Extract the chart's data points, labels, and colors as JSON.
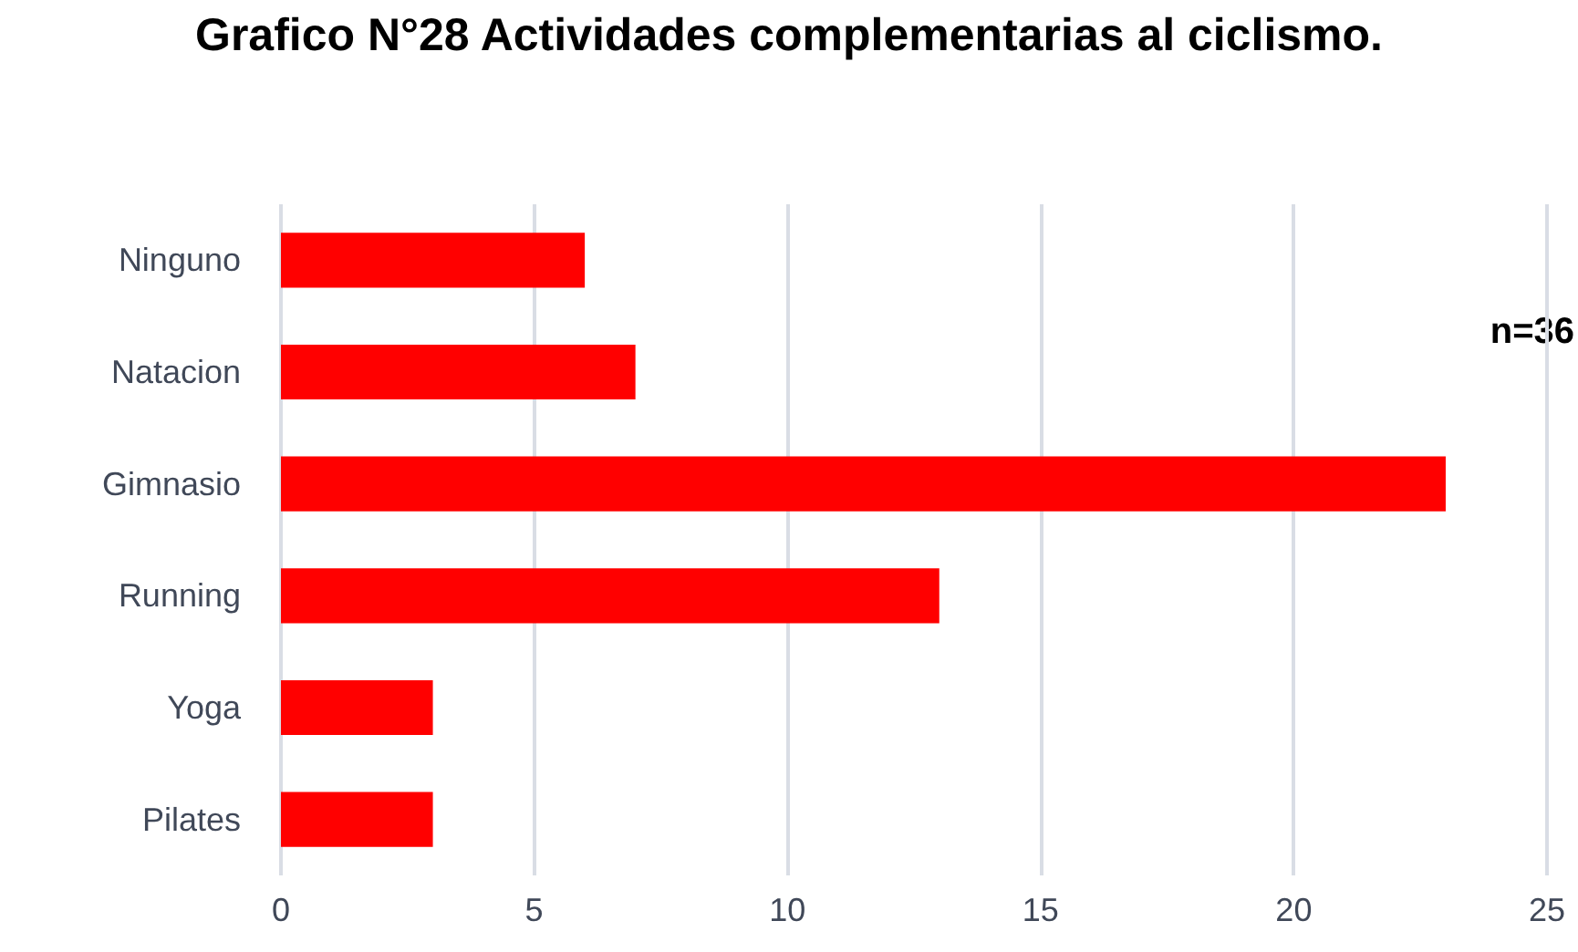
{
  "chart_data": {
    "type": "bar",
    "orientation": "horizontal",
    "title": "Grafico N°28 Actividades complementarias al ciclismo.",
    "categories": [
      "Ninguno",
      "Natacion",
      "Gimnasio",
      "Running",
      "Yoga",
      "Pilates"
    ],
    "values": [
      6,
      7,
      23,
      13,
      3,
      3
    ],
    "color": "#ff0000",
    "xlim": [
      0,
      25
    ],
    "xticks": [
      0,
      5,
      10,
      15,
      20,
      25
    ],
    "grid": "x",
    "annotations": [
      "n=36"
    ]
  }
}
